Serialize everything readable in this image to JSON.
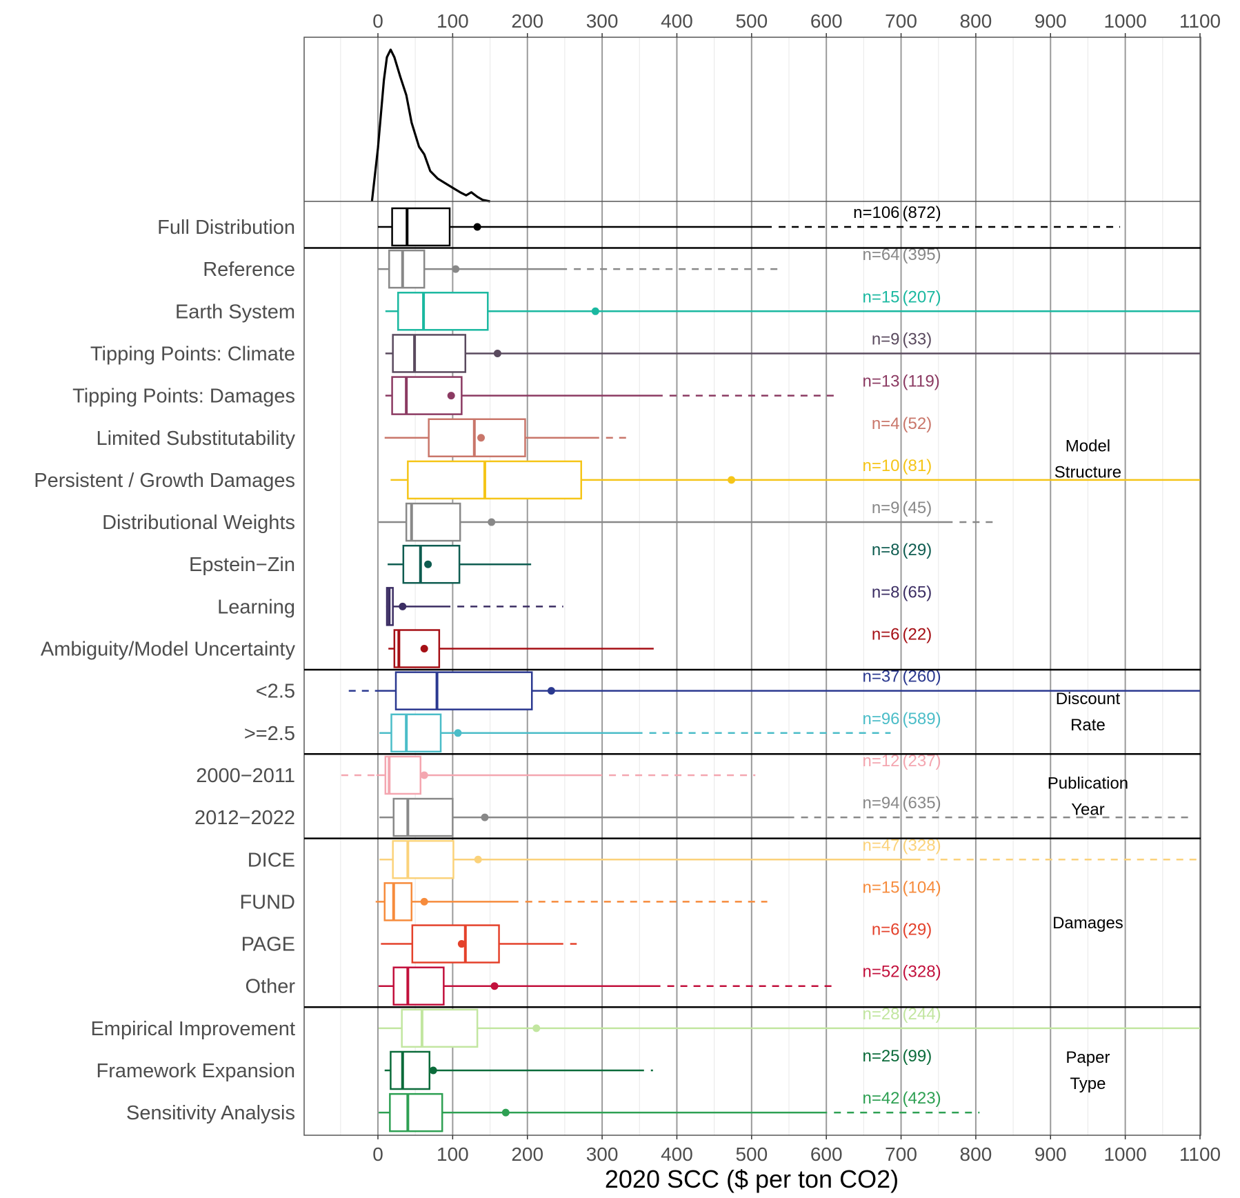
{
  "chart_data": {
    "type": "boxplot",
    "xlabel": "2020 SCC ($ per ton CO2)",
    "xlim": [
      -110,
      1100
    ],
    "xticks": [
      0,
      100,
      200,
      300,
      400,
      500,
      600,
      700,
      800,
      900,
      1000,
      1100
    ],
    "grid": true,
    "density": {
      "description_label": "",
      "x": [
        -8,
        0,
        8,
        12,
        17,
        22,
        30,
        38,
        45,
        55,
        62,
        70,
        80,
        90,
        100,
        110,
        118,
        125,
        133,
        140,
        150
      ],
      "y": [
        0,
        0.35,
        0.8,
        0.95,
        1.0,
        0.95,
        0.82,
        0.7,
        0.52,
        0.36,
        0.31,
        0.2,
        0.15,
        0.12,
        0.09,
        0.06,
        0.04,
        0.06,
        0.03,
        0.01,
        0
      ]
    },
    "rows": [
      {
        "label": "Full Distribution",
        "n": "n=106",
        "count": "(872)",
        "color": "#000000",
        "low": 0,
        "q1": 19,
        "median": 39,
        "q3": 96,
        "mean": 133,
        "solid_end": 527,
        "dashed_end": 993,
        "dashed_start": null
      },
      {
        "label": "Reference",
        "n": "n=64",
        "count": "(395)",
        "color": "#888888",
        "low": 0,
        "q1": 15,
        "median": 33,
        "q3": 62,
        "mean": 104,
        "solid_end": 253,
        "dashed_end": 539,
        "dashed_start": null
      },
      {
        "label": "Earth System",
        "n": "n=15",
        "count": "(207)",
        "color": "#1ab8a0",
        "low": 10,
        "q1": 27,
        "median": 61,
        "q3": 147,
        "mean": 291,
        "solid_end": 1100,
        "dashed_end": null,
        "dashed_start": null
      },
      {
        "label": "Tipping Points: Climate",
        "n": "n=9",
        "count": "(33)",
        "color": "#5a4a5e",
        "low": 10,
        "q1": 20,
        "median": 49,
        "q3": 117,
        "mean": 160,
        "solid_end": 1100,
        "dashed_end": null,
        "dashed_start": null
      },
      {
        "label": "Tipping Points: Damages",
        "n": "n=13",
        "count": "(119)",
        "color": "#8b3a62",
        "low": 10,
        "q1": 19,
        "median": 38,
        "q3": 112,
        "mean": 98,
        "solid_end": 381,
        "dashed_end": 610,
        "dashed_start": null
      },
      {
        "label": "Limited Substitutability",
        "n": "n=4",
        "count": "(52)",
        "color": "#c9766a",
        "low": 9,
        "q1": 68,
        "median": 129,
        "q3": 197,
        "mean": 138,
        "solid_end": 296,
        "dashed_end": 334,
        "dashed_start": null
      },
      {
        "label": "Persistent / Growth Damages",
        "n": "n=10",
        "count": "(81)",
        "color": "#f5c518",
        "low": 17,
        "q1": 40,
        "median": 143,
        "q3": 272,
        "mean": 473,
        "solid_end": 1100,
        "dashed_end": null,
        "dashed_start": null
      },
      {
        "label": "Distributional Weights",
        "n": "n=9",
        "count": "(45)",
        "color": "#888888",
        "low": 1,
        "q1": 38,
        "median": 45,
        "q3": 110,
        "mean": 152,
        "solid_end": 769,
        "dashed_end": 828,
        "dashed_start": null
      },
      {
        "label": "Epstein−Zin",
        "n": "n=8",
        "count": "(29)",
        "color": "#0e5c50",
        "low": 13,
        "q1": 34,
        "median": 57,
        "q3": 109,
        "mean": 67,
        "solid_end": 205,
        "dashed_end": null,
        "dashed_start": null
      },
      {
        "label": "Learning",
        "n": "n=8",
        "count": "(65)",
        "color": "#3b2d63",
        "low": 11,
        "q1": 12,
        "median": 15,
        "q3": 20,
        "mean": 33,
        "solid_end": 97,
        "dashed_end": 248,
        "dashed_start": null
      },
      {
        "label": "Ambiguity/Model Uncertainty",
        "n": "n=6",
        "count": "(22)",
        "color": "#a50f15",
        "low": 14,
        "q1": 22,
        "median": 28,
        "q3": 82,
        "mean": 62,
        "solid_end": 369,
        "dashed_end": null,
        "dashed_start": null
      },
      {
        "label": "<2.5",
        "n": "n=37",
        "count": "(260)",
        "color": "#2b3990",
        "low": -4,
        "q1": 24,
        "median": 79,
        "q3": 206,
        "mean": 232,
        "solid_end": 1100,
        "dashed_end": null,
        "dashed_start": -39
      },
      {
        "label": ">=2.5",
        "n": "n=96",
        "count": "(589)",
        "color": "#4bbdc8",
        "low": 2,
        "q1": 18,
        "median": 38,
        "q3": 84,
        "mean": 107,
        "solid_end": 354,
        "dashed_end": 686,
        "dashed_start": null
      },
      {
        "label": "2000−2011",
        "n": "n=12",
        "count": "(237)",
        "color": "#f4a6b0",
        "low": -2,
        "q1": 10,
        "median": 15,
        "q3": 57,
        "mean": 62,
        "solid_end": 300,
        "dashed_end": 505,
        "dashed_start": -49
      },
      {
        "label": "2012−2022",
        "n": "n=94",
        "count": "(635)",
        "color": "#888888",
        "low": 2,
        "q1": 21,
        "median": 40,
        "q3": 100,
        "mean": 143,
        "solid_end": 557,
        "dashed_end": 1090,
        "dashed_start": null
      },
      {
        "label": "DICE",
        "n": "n=47",
        "count": "(328)",
        "color": "#fbd27a",
        "low": 2,
        "q1": 20,
        "median": 40,
        "q3": 101,
        "mean": 134,
        "solid_end": 726,
        "dashed_end": 1100,
        "dashed_start": null
      },
      {
        "label": "FUND",
        "n": "n=15",
        "count": "(104)",
        "color": "#f68b3c",
        "low": -1,
        "q1": 9,
        "median": 21,
        "q3": 45,
        "mean": 62,
        "solid_end": 188,
        "dashed_end": 521,
        "dashed_start": -3
      },
      {
        "label": "PAGE",
        "n": "n=6",
        "count": "(29)",
        "color": "#e4412b",
        "low": 4,
        "q1": 46,
        "median": 117,
        "q3": 162,
        "mean": 112,
        "solid_end": 248,
        "dashed_end": 266,
        "dashed_start": null
      },
      {
        "label": "Other",
        "n": "n=52",
        "count": "(328)",
        "color": "#c2103c",
        "low": 1,
        "q1": 21,
        "median": 40,
        "q3": 88,
        "mean": 156,
        "solid_end": 378,
        "dashed_end": 615,
        "dashed_start": null
      },
      {
        "label": "Empirical Improvement",
        "n": "n=28",
        "count": "(244)",
        "color": "#c2e6a0",
        "low": 1,
        "q1": 32,
        "median": 59,
        "q3": 133,
        "mean": 212,
        "solid_end": 1100,
        "dashed_end": null,
        "dashed_start": null
      },
      {
        "label": "Framework Expansion",
        "n": "n=25",
        "count": "(99)",
        "color": "#0b6b3a",
        "low": 9,
        "q1": 17,
        "median": 33,
        "q3": 69,
        "mean": 74,
        "solid_end": 356,
        "dashed_end": 368,
        "dashed_start": null
      },
      {
        "label": "Sensitivity Analysis",
        "n": "n=42",
        "count": "(423)",
        "color": "#2ea053",
        "low": 1,
        "q1": 16,
        "median": 40,
        "q3": 86,
        "mean": 171,
        "solid_end": 601,
        "dashed_end": 805,
        "dashed_start": null
      }
    ],
    "groups": [
      {
        "lines": [
          "Model",
          "Structure"
        ],
        "first_row": 1,
        "last_row": 10
      },
      {
        "lines": [
          "Discount",
          "Rate"
        ],
        "first_row": 11,
        "last_row": 12
      },
      {
        "lines": [
          "Publication",
          "Year"
        ],
        "first_row": 13,
        "last_row": 14
      },
      {
        "lines": [
          "Damages"
        ],
        "first_row": 15,
        "last_row": 18
      },
      {
        "lines": [
          "Paper",
          "Type"
        ],
        "first_row": 19,
        "last_row": 21
      }
    ],
    "separators_after_rows": [
      0,
      10,
      12,
      14,
      18
    ]
  }
}
